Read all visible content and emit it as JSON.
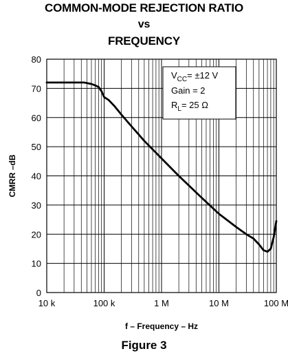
{
  "title_lines": [
    "COMMON-MODE REJECTION RATIO",
    "vs",
    "FREQUENCY"
  ],
  "figure_caption": "Figure 3",
  "colors": {
    "curve": "#000000",
    "grid": "#000000",
    "background": "#ffffff"
  },
  "chart_data": {
    "type": "line",
    "title": "COMMON-MODE REJECTION RATIO vs FREQUENCY",
    "xlabel": "f – Frequency – Hz",
    "ylabel": "CMRR –dB",
    "x_scale": "log",
    "xlim": [
      10000,
      100000000
    ],
    "ylim": [
      0,
      80
    ],
    "x_tick_values": [
      10000,
      100000,
      1000000,
      10000000,
      100000000
    ],
    "x_tick_labels": [
      "10 k",
      "100 k",
      "1 M",
      "10 M",
      "100 M"
    ],
    "y_tick_values": [
      0,
      10,
      20,
      30,
      40,
      50,
      60,
      70,
      80
    ],
    "y_tick_labels": [
      "0",
      "10",
      "20",
      "30",
      "40",
      "50",
      "60",
      "70",
      "80"
    ],
    "grid": true,
    "legend": "none",
    "annotation": {
      "line1_main": "V",
      "line1_sub": "CC",
      "line1_rest": "= ±12 V",
      "line2": "Gain = 2",
      "line3_main": "R",
      "line3_sub": "L",
      "line3_rest": "= 25 Ω",
      "placement": "top-right"
    },
    "series": [
      {
        "x": [
          10000,
          20000,
          30000,
          45000,
          60000,
          70000,
          80000,
          90000,
          100000,
          120000,
          150000,
          200000,
          300000,
          500000,
          1000000,
          2000000,
          5000000,
          10000000,
          20000000,
          30000000,
          40000000,
          50000000,
          60000000,
          70000000,
          80000000,
          90000000,
          100000000
        ],
        "y": [
          72,
          72,
          72,
          72,
          71.5,
          71,
          70.5,
          69,
          67,
          66,
          64,
          61,
          57,
          52,
          46,
          40,
          32.5,
          27,
          22.5,
          20,
          18.5,
          16.5,
          14.5,
          14,
          15,
          19,
          24.5
        ]
      }
    ]
  }
}
